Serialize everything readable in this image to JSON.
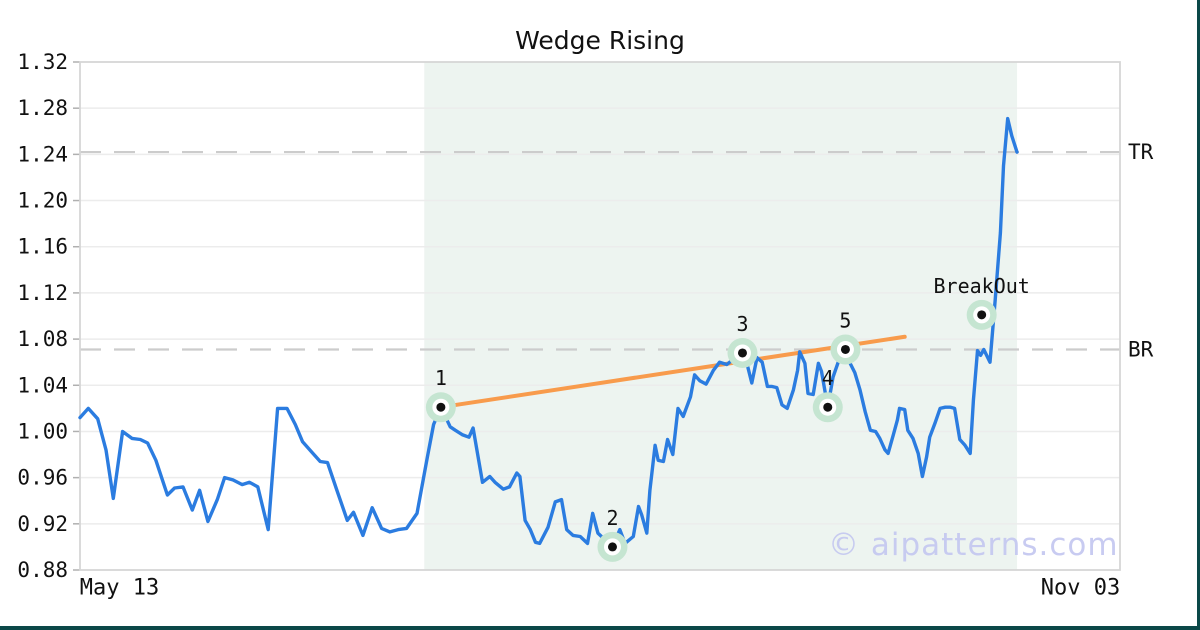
{
  "page_title": "Wedge Rising",
  "watermark_text": "© aipatterns.com",
  "colors": {
    "price_line": "#2b7ce0",
    "trendline": "#f89b4c",
    "pattern_zone": "#edf4f0",
    "marker_fill": "#c5e5d1",
    "marker_ring": "#ffffff",
    "marker_dot": "#111111",
    "gridline": "#ececec",
    "dashed_level": "#cccccc",
    "plot_border": "#d6d6d6",
    "tick_mark": "#b0b0b0",
    "text": "#111111",
    "watermark": "#c6c9f1",
    "frame_bar": "#0b4848"
  },
  "chart_data": {
    "type": "line",
    "title": "Wedge Rising",
    "xlabel": "",
    "ylabel": "",
    "grid": "horizontal-only",
    "x_axis": {
      "range_labels": [
        "May 13",
        "Nov 03"
      ],
      "tick_labels": [
        {
          "label": "May 13",
          "t": 0.038
        },
        {
          "label": "Nov 03",
          "t": 0.962
        }
      ]
    },
    "y_axis": {
      "min": 0.88,
      "max": 1.32,
      "tick_labels": [
        "0.88",
        "0.92",
        "0.96",
        "1.00",
        "1.04",
        "1.08",
        "1.12",
        "1.16",
        "1.20",
        "1.24",
        "1.28",
        "1.32"
      ]
    },
    "levels": [
      {
        "label": "TR",
        "value": 1.242
      },
      {
        "label": "BR",
        "value": 1.071
      }
    ],
    "pattern_zone": {
      "t0": 0.331,
      "t1": 0.901
    },
    "trendline": {
      "from": {
        "t": 0.347,
        "v": 1.021
      },
      "to": {
        "t": 0.793,
        "v": 1.082
      }
    },
    "markers": [
      {
        "label": "1",
        "t": 0.347,
        "v": 1.021
      },
      {
        "label": "2",
        "t": 0.512,
        "v": 0.9
      },
      {
        "label": "3",
        "t": 0.637,
        "v": 1.068
      },
      {
        "label": "4",
        "t": 0.719,
        "v": 1.021
      },
      {
        "label": "5",
        "t": 0.736,
        "v": 1.071
      },
      {
        "label": "BreakOut",
        "t": 0.867,
        "v": 1.101
      }
    ],
    "series": [
      {
        "name": "price",
        "points": [
          [
            0.0,
            1.012
          ],
          [
            0.008,
            1.02
          ],
          [
            0.017,
            1.011
          ],
          [
            0.025,
            0.984
          ],
          [
            0.032,
            0.942
          ],
          [
            0.041,
            1.0
          ],
          [
            0.05,
            0.994
          ],
          [
            0.058,
            0.993
          ],
          [
            0.065,
            0.99
          ],
          [
            0.073,
            0.975
          ],
          [
            0.084,
            0.945
          ],
          [
            0.091,
            0.951
          ],
          [
            0.099,
            0.952
          ],
          [
            0.108,
            0.932
          ],
          [
            0.115,
            0.949
          ],
          [
            0.123,
            0.922
          ],
          [
            0.132,
            0.941
          ],
          [
            0.139,
            0.96
          ],
          [
            0.147,
            0.958
          ],
          [
            0.156,
            0.954
          ],
          [
            0.163,
            0.956
          ],
          [
            0.171,
            0.952
          ],
          [
            0.181,
            0.915
          ],
          [
            0.19,
            1.02
          ],
          [
            0.199,
            1.02
          ],
          [
            0.207,
            1.006
          ],
          [
            0.214,
            0.991
          ],
          [
            0.223,
            0.982
          ],
          [
            0.231,
            0.974
          ],
          [
            0.238,
            0.973
          ],
          [
            0.247,
            0.949
          ],
          [
            0.257,
            0.923
          ],
          [
            0.263,
            0.93
          ],
          [
            0.272,
            0.91
          ],
          [
            0.281,
            0.934
          ],
          [
            0.29,
            0.916
          ],
          [
            0.298,
            0.913
          ],
          [
            0.306,
            0.915
          ],
          [
            0.314,
            0.916
          ],
          [
            0.324,
            0.929
          ],
          [
            0.334,
            0.978
          ],
          [
            0.34,
            1.006
          ],
          [
            0.347,
            1.021
          ],
          [
            0.356,
            1.004
          ],
          [
            0.361,
            1.001
          ],
          [
            0.368,
            0.997
          ],
          [
            0.374,
            0.995
          ],
          [
            0.378,
            1.003
          ],
          [
            0.387,
            0.956
          ],
          [
            0.394,
            0.961
          ],
          [
            0.399,
            0.956
          ],
          [
            0.407,
            0.95
          ],
          [
            0.413,
            0.952
          ],
          [
            0.42,
            0.964
          ],
          [
            0.423,
            0.961
          ],
          [
            0.428,
            0.923
          ],
          [
            0.433,
            0.915
          ],
          [
            0.438,
            0.904
          ],
          [
            0.442,
            0.903
          ],
          [
            0.45,
            0.917
          ],
          [
            0.457,
            0.939
          ],
          [
            0.463,
            0.941
          ],
          [
            0.468,
            0.915
          ],
          [
            0.474,
            0.91
          ],
          [
            0.481,
            0.909
          ],
          [
            0.488,
            0.903
          ],
          [
            0.493,
            0.929
          ],
          [
            0.498,
            0.912
          ],
          [
            0.505,
            0.906
          ],
          [
            0.512,
            0.9
          ],
          [
            0.519,
            0.915
          ],
          [
            0.524,
            0.903
          ],
          [
            0.532,
            0.909
          ],
          [
            0.537,
            0.935
          ],
          [
            0.54,
            0.928
          ],
          [
            0.545,
            0.912
          ],
          [
            0.548,
            0.949
          ],
          [
            0.553,
            0.988
          ],
          [
            0.556,
            0.975
          ],
          [
            0.561,
            0.974
          ],
          [
            0.565,
            0.993
          ],
          [
            0.57,
            0.98
          ],
          [
            0.575,
            1.02
          ],
          [
            0.58,
            1.013
          ],
          [
            0.587,
            1.03
          ],
          [
            0.591,
            1.049
          ],
          [
            0.596,
            1.044
          ],
          [
            0.602,
            1.041
          ],
          [
            0.609,
            1.053
          ],
          [
            0.615,
            1.06
          ],
          [
            0.622,
            1.058
          ],
          [
            0.63,
            1.064
          ],
          [
            0.637,
            1.068
          ],
          [
            0.641,
            1.06
          ],
          [
            0.646,
            1.042
          ],
          [
            0.651,
            1.064
          ],
          [
            0.656,
            1.06
          ],
          [
            0.661,
            1.039
          ],
          [
            0.665,
            1.039
          ],
          [
            0.67,
            1.038
          ],
          [
            0.675,
            1.023
          ],
          [
            0.68,
            1.02
          ],
          [
            0.686,
            1.036
          ],
          [
            0.69,
            1.053
          ],
          [
            0.692,
            1.069
          ],
          [
            0.697,
            1.059
          ],
          [
            0.7,
            1.033
          ],
          [
            0.705,
            1.032
          ],
          [
            0.71,
            1.059
          ],
          [
            0.713,
            1.052
          ],
          [
            0.719,
            1.021
          ],
          [
            0.724,
            1.047
          ],
          [
            0.729,
            1.06
          ],
          [
            0.736,
            1.071
          ],
          [
            0.74,
            1.06
          ],
          [
            0.745,
            1.051
          ],
          [
            0.75,
            1.036
          ],
          [
            0.755,
            1.017
          ],
          [
            0.76,
            1.001
          ],
          [
            0.765,
            1.0
          ],
          [
            0.769,
            0.994
          ],
          [
            0.774,
            0.984
          ],
          [
            0.777,
            0.981
          ],
          [
            0.782,
            0.997
          ],
          [
            0.786,
            1.01
          ],
          [
            0.788,
            1.02
          ],
          [
            0.793,
            1.019
          ],
          [
            0.796,
            1.001
          ],
          [
            0.801,
            0.994
          ],
          [
            0.806,
            0.981
          ],
          [
            0.81,
            0.961
          ],
          [
            0.814,
            0.978
          ],
          [
            0.817,
            0.995
          ],
          [
            0.822,
            1.007
          ],
          [
            0.827,
            1.02
          ],
          [
            0.832,
            1.021
          ],
          [
            0.837,
            1.021
          ],
          [
            0.841,
            1.02
          ],
          [
            0.846,
            0.993
          ],
          [
            0.851,
            0.988
          ],
          [
            0.856,
            0.981
          ],
          [
            0.859,
            1.027
          ],
          [
            0.863,
            1.07
          ],
          [
            0.866,
            1.066
          ],
          [
            0.869,
            1.071
          ],
          [
            0.875,
            1.06
          ],
          [
            0.88,
            1.114
          ],
          [
            0.885,
            1.172
          ],
          [
            0.888,
            1.23
          ],
          [
            0.892,
            1.271
          ],
          [
            0.896,
            1.256
          ],
          [
            0.901,
            1.242
          ]
        ]
      }
    ]
  }
}
